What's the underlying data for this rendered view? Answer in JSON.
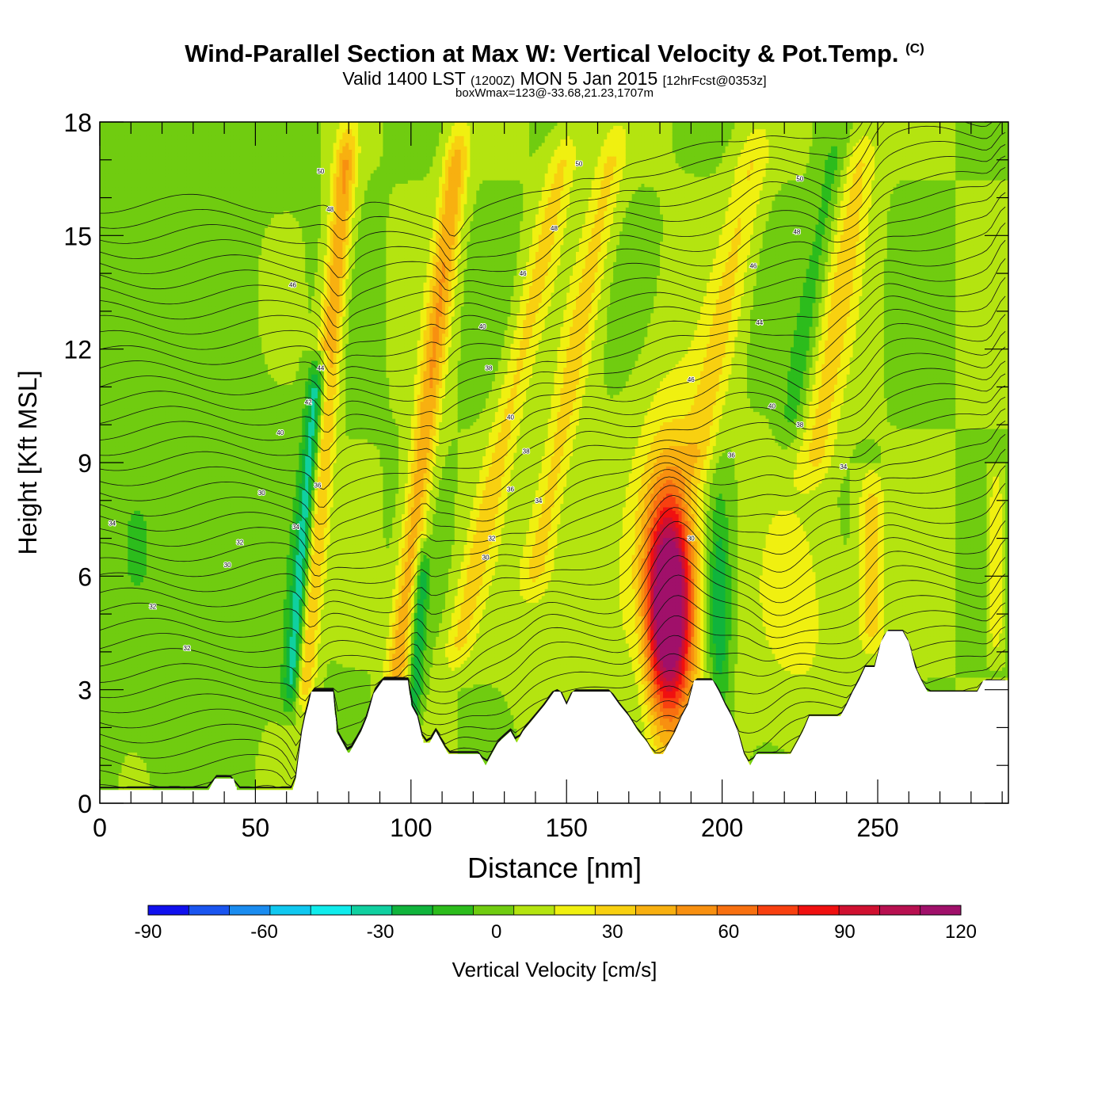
{
  "header": {
    "title": "Wind-Parallel Section at Max W: Vertical Velocity & Pot.Temp.",
    "copyright": "(C)",
    "valid": "Valid 1400 LST",
    "valid_utc": "(1200Z)",
    "date": "MON 5 Jan 2015",
    "forecast": "[12hrFcst@0353z]",
    "box_note": "boxWmax=123@-33.68,21.23,1707m"
  },
  "chart_data": {
    "type": "heatmap",
    "title": "Wind-Parallel Section at Max W: Vertical Velocity & Pot.Temp.",
    "xlabel": "Distance [nm]",
    "ylabel": "Height [Kft MSL]",
    "xlim": [
      0,
      292
    ],
    "ylim": [
      0,
      18
    ],
    "x_ticks": [
      0,
      50,
      100,
      150,
      200,
      250
    ],
    "x_tick_labels": [
      "0",
      "50",
      "100",
      "150",
      "200",
      "250"
    ],
    "y_ticks": [
      0,
      3,
      6,
      9,
      12,
      15,
      18
    ],
    "y_tick_labels": [
      "0",
      "3",
      "6",
      "9",
      "12",
      "15",
      "18"
    ],
    "colorbar": {
      "label": "Vertical Velocity [cm/s]",
      "min": -90,
      "max": 120,
      "step": 10,
      "tick_values": [
        -90,
        -60,
        -30,
        0,
        30,
        60,
        90,
        120
      ],
      "tick_labels": [
        "-90",
        "-60",
        "-30",
        "0",
        "30",
        "60",
        "90",
        "120"
      ],
      "colors": [
        "#1010ee",
        "#1a55f0",
        "#1a8cf0",
        "#10c8f0",
        "#10ecec",
        "#10d0a0",
        "#10b43c",
        "#2cbc1c",
        "#70cc10",
        "#b4e410",
        "#f0f010",
        "#f8d010",
        "#f8b010",
        "#f89010",
        "#f87010",
        "#f84010",
        "#f01010",
        "#d01030",
        "#b81050",
        "#a0106a"
      ]
    },
    "background_w": 0,
    "terrain_kft": [
      [
        0,
        0.35
      ],
      [
        35,
        0.35
      ],
      [
        37,
        0.65
      ],
      [
        43,
        0.65
      ],
      [
        44,
        0.35
      ],
      [
        62,
        0.35
      ],
      [
        63,
        0.65
      ],
      [
        64,
        1.3
      ],
      [
        65,
        1.9
      ],
      [
        66,
        2.3
      ],
      [
        67,
        2.6
      ],
      [
        68,
        2.95
      ],
      [
        72,
        2.95
      ],
      [
        75,
        2.95
      ],
      [
        76,
        1.9
      ],
      [
        78,
        1.6
      ],
      [
        80,
        1.3
      ],
      [
        82,
        1.6
      ],
      [
        84,
        1.9
      ],
      [
        86,
        2.3
      ],
      [
        88,
        2.9
      ],
      [
        91,
        3.25
      ],
      [
        99,
        3.25
      ],
      [
        100,
        2.6
      ],
      [
        102,
        2.3
      ],
      [
        104,
        1.6
      ],
      [
        106,
        1.6
      ],
      [
        108,
        1.9
      ],
      [
        110,
        1.6
      ],
      [
        112,
        1.3
      ],
      [
        122,
        1.3
      ],
      [
        124,
        1.0
      ],
      [
        126,
        1.3
      ],
      [
        128,
        1.6
      ],
      [
        132,
        1.9
      ],
      [
        134,
        1.6
      ],
      [
        136,
        1.9
      ],
      [
        140,
        2.3
      ],
      [
        143,
        2.6
      ],
      [
        146,
        2.95
      ],
      [
        148,
        2.95
      ],
      [
        150,
        2.6
      ],
      [
        152,
        2.95
      ],
      [
        164,
        2.95
      ],
      [
        167,
        2.6
      ],
      [
        170,
        2.3
      ],
      [
        173,
        1.9
      ],
      [
        176,
        1.6
      ],
      [
        178,
        1.3
      ],
      [
        181,
        1.3
      ],
      [
        183,
        1.6
      ],
      [
        185,
        1.9
      ],
      [
        187,
        2.3
      ],
      [
        189,
        2.6
      ],
      [
        191,
        3.25
      ],
      [
        197,
        3.25
      ],
      [
        199,
        2.95
      ],
      [
        201,
        2.6
      ],
      [
        203,
        2.3
      ],
      [
        205,
        1.9
      ],
      [
        207,
        1.3
      ],
      [
        209,
        1.0
      ],
      [
        211,
        1.3
      ],
      [
        222,
        1.3
      ],
      [
        224,
        1.6
      ],
      [
        226,
        1.9
      ],
      [
        228,
        2.3
      ],
      [
        238,
        2.3
      ],
      [
        240,
        2.6
      ],
      [
        242,
        2.95
      ],
      [
        244,
        3.25
      ],
      [
        246,
        3.6
      ],
      [
        249,
        3.6
      ],
      [
        251,
        4.25
      ],
      [
        253,
        4.55
      ],
      [
        258,
        4.55
      ],
      [
        260,
        4.25
      ],
      [
        262,
        3.6
      ],
      [
        264,
        3.25
      ],
      [
        266,
        2.95
      ],
      [
        276,
        2.95
      ],
      [
        282,
        2.95
      ],
      [
        284,
        3.25
      ],
      [
        292,
        3.25
      ]
    ],
    "w_features": [
      {
        "name": "updraft-core",
        "x": 183,
        "z": 5.2,
        "amp": 115,
        "sx": 5.0,
        "sz": 1.9
      },
      {
        "name": "updraft-halo",
        "x": 183,
        "z": 6.0,
        "amp": 30,
        "sx": 8.0,
        "sz": 3.6
      },
      {
        "name": "downdraft-lee",
        "x": 199,
        "z": 5.0,
        "amp": -32,
        "sx": 2.6,
        "sz": 2.2
      },
      {
        "name": "downdraft-lee-2",
        "x": 174,
        "z": 4.0,
        "amp": -8,
        "sx": 3.0,
        "sz": 2.0
      },
      {
        "name": "ridge-lift",
        "x": 150,
        "z": 4.5,
        "amp": 10,
        "sx": 10.0,
        "sz": 2.5
      },
      {
        "name": "ridge-lift-2",
        "x": 225,
        "z": 5.0,
        "amp": 12,
        "sx": 12.0,
        "sz": 2.5
      },
      {
        "name": "bg-low-left",
        "x": 20,
        "z": 9.0,
        "amp": -6,
        "sx": 30.0,
        "sz": 9.0
      }
    ],
    "w_bands": [
      {
        "name": "band-1-up",
        "x0": 66,
        "z0": 4.0,
        "slope_nm_per_kft": 1.0,
        "amp": 42,
        "sx": 2.6,
        "zmin": 2.0,
        "zmax": 18.0
      },
      {
        "name": "band-1-down",
        "x0": 62,
        "z0": 3.0,
        "slope_nm_per_kft": 1.0,
        "amp": -48,
        "sx": 2.2,
        "zmin": 2.0,
        "zmax": 12.0
      },
      {
        "name": "band-2-up",
        "x0": 95,
        "z0": 3.0,
        "slope_nm_per_kft": 1.4,
        "amp": 38,
        "sx": 2.8,
        "zmin": 1.5,
        "zmax": 18.0
      },
      {
        "name": "band-2-down",
        "x0": 102,
        "z0": 4.0,
        "slope_nm_per_kft": 0.7,
        "amp": -30,
        "sx": 1.6,
        "zmin": 1.5,
        "zmax": 7.0
      },
      {
        "name": "band-3-up",
        "x0": 115,
        "z0": 4.0,
        "slope_nm_per_kft": 2.6,
        "amp": 22,
        "sx": 3.5,
        "zmin": 3.0,
        "zmax": 18.0
      },
      {
        "name": "band-4-up",
        "x0": 140,
        "z0": 6.0,
        "slope_nm_per_kft": 2.2,
        "amp": 22,
        "sx": 3.5,
        "zmin": 5.0,
        "zmax": 18.0
      },
      {
        "name": "band-5-up",
        "x0": 192,
        "z0": 9.0,
        "slope_nm_per_kft": 2.2,
        "amp": 20,
        "sx": 4.0,
        "zmin": 8.0,
        "zmax": 18.0
      },
      {
        "name": "band-6-up",
        "x0": 230,
        "z0": 9.0,
        "slope_nm_per_kft": 1.8,
        "amp": 22,
        "sx": 4.0,
        "zmin": 8.0,
        "zmax": 18.0
      },
      {
        "name": "band-6-down",
        "x0": 222,
        "z0": 10.0,
        "slope_nm_per_kft": 2.0,
        "amp": -14,
        "sx": 3.0,
        "zmin": 9.0,
        "zmax": 18.0
      },
      {
        "name": "band-7-up",
        "x0": 248,
        "z0": 3.5,
        "slope_nm_per_kft": 0.0,
        "amp": 26,
        "sx": 3.0,
        "zmin": 3.5,
        "zmax": 9.0
      },
      {
        "name": "band-8-up",
        "x0": 288,
        "z0": 3.5,
        "slope_nm_per_kft": 0.0,
        "amp": 24,
        "sx": 1.6,
        "zmin": 3.5,
        "zmax": 9.0
      }
    ],
    "theta_contours": {
      "levels_kelvin_offset": [],
      "count": 44,
      "z_bottom_kft": 0.5,
      "spacing_kft": 0.4,
      "labels": [
        {
          "text": "34",
          "x": 4,
          "z": 7.4
        },
        {
          "text": "32",
          "x": 17,
          "z": 5.2
        },
        {
          "text": "32",
          "x": 28,
          "z": 4.1
        },
        {
          "text": "30",
          "x": 41,
          "z": 6.3
        },
        {
          "text": "32",
          "x": 45,
          "z": 6.9
        },
        {
          "text": "30",
          "x": 52,
          "z": 8.2
        },
        {
          "text": "34",
          "x": 63,
          "z": 7.3
        },
        {
          "text": "40",
          "x": 58,
          "z": 9.8
        },
        {
          "text": "36",
          "x": 70,
          "z": 8.4
        },
        {
          "text": "42",
          "x": 67,
          "z": 10.6
        },
        {
          "text": "44",
          "x": 71,
          "z": 11.5
        },
        {
          "text": "46",
          "x": 62,
          "z": 13.7
        },
        {
          "text": "48",
          "x": 74,
          "z": 15.7
        },
        {
          "text": "50",
          "x": 71,
          "z": 16.7
        },
        {
          "text": "40",
          "x": 123,
          "z": 12.6
        },
        {
          "text": "38",
          "x": 125,
          "z": 11.5
        },
        {
          "text": "40",
          "x": 132,
          "z": 10.2
        },
        {
          "text": "38",
          "x": 137,
          "z": 9.3
        },
        {
          "text": "36",
          "x": 132,
          "z": 8.3
        },
        {
          "text": "34",
          "x": 141,
          "z": 8.0
        },
        {
          "text": "32",
          "x": 126,
          "z": 7.0
        },
        {
          "text": "30",
          "x": 124,
          "z": 6.5
        },
        {
          "text": "46",
          "x": 136,
          "z": 14.0
        },
        {
          "text": "48",
          "x": 146,
          "z": 15.2
        },
        {
          "text": "50",
          "x": 154,
          "z": 16.9
        },
        {
          "text": "46",
          "x": 190,
          "z": 11.2
        },
        {
          "text": "36",
          "x": 203,
          "z": 9.2
        },
        {
          "text": "30",
          "x": 190,
          "z": 7.0
        },
        {
          "text": "46",
          "x": 210,
          "z": 14.2
        },
        {
          "text": "44",
          "x": 212,
          "z": 12.7
        },
        {
          "text": "40",
          "x": 216,
          "z": 10.5
        },
        {
          "text": "38",
          "x": 225,
          "z": 10.0
        },
        {
          "text": "48",
          "x": 224,
          "z": 15.1
        },
        {
          "text": "50",
          "x": 225,
          "z": 16.5
        },
        {
          "text": "34",
          "x": 239,
          "z": 8.9
        }
      ]
    }
  }
}
